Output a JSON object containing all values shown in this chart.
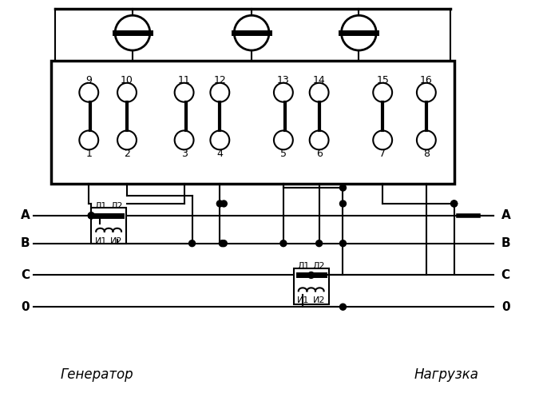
{
  "bg_color": "#ffffff",
  "line_color": "#000000",
  "fig_width": 6.7,
  "fig_height": 4.92,
  "title_bottom": "Генератор",
  "title_bottom_right": "Нагрузка",
  "terminal_labels": [
    "1",
    "2",
    "3",
    "4",
    "5",
    "6",
    "7",
    "8",
    "9",
    "10",
    "11",
    "12",
    "13",
    "14",
    "15",
    "16"
  ],
  "phase_labels": [
    "A",
    "B",
    "C",
    "0"
  ],
  "ct_labels_left": [
    "Л1",
    "Л2",
    "И1",
    "И2"
  ],
  "ct_labels_right": [
    "Л1",
    "Л2",
    "И1",
    "И2"
  ]
}
